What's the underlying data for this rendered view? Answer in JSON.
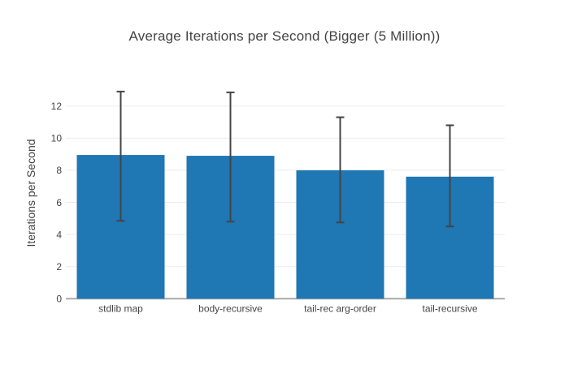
{
  "page": {
    "background": "#ffffff"
  },
  "chart_data": {
    "type": "bar",
    "title": "Average Iterations per Second (Bigger (5 Million))",
    "ylabel": "Iterations per Second",
    "xlabel": "",
    "categories": [
      "stdlib map",
      "body-recursive",
      "tail-rec arg-order",
      "tail-recursive"
    ],
    "values": [
      8.95,
      8.9,
      8.0,
      7.6
    ],
    "error_high": [
      12.9,
      12.85,
      11.3,
      10.8
    ],
    "error_low": [
      4.85,
      4.8,
      4.75,
      4.5
    ],
    "yticks": [
      0,
      2,
      4,
      6,
      8,
      10,
      12
    ],
    "ylim": [
      0,
      13.55
    ],
    "grid": true,
    "legend": "none",
    "colors": {
      "bar": "#1f77b4",
      "error_bar": "#444444",
      "grid_line": "#ececec",
      "zero_line": "#a9a9a9",
      "text": "#444444",
      "background": "#ffffff"
    }
  }
}
